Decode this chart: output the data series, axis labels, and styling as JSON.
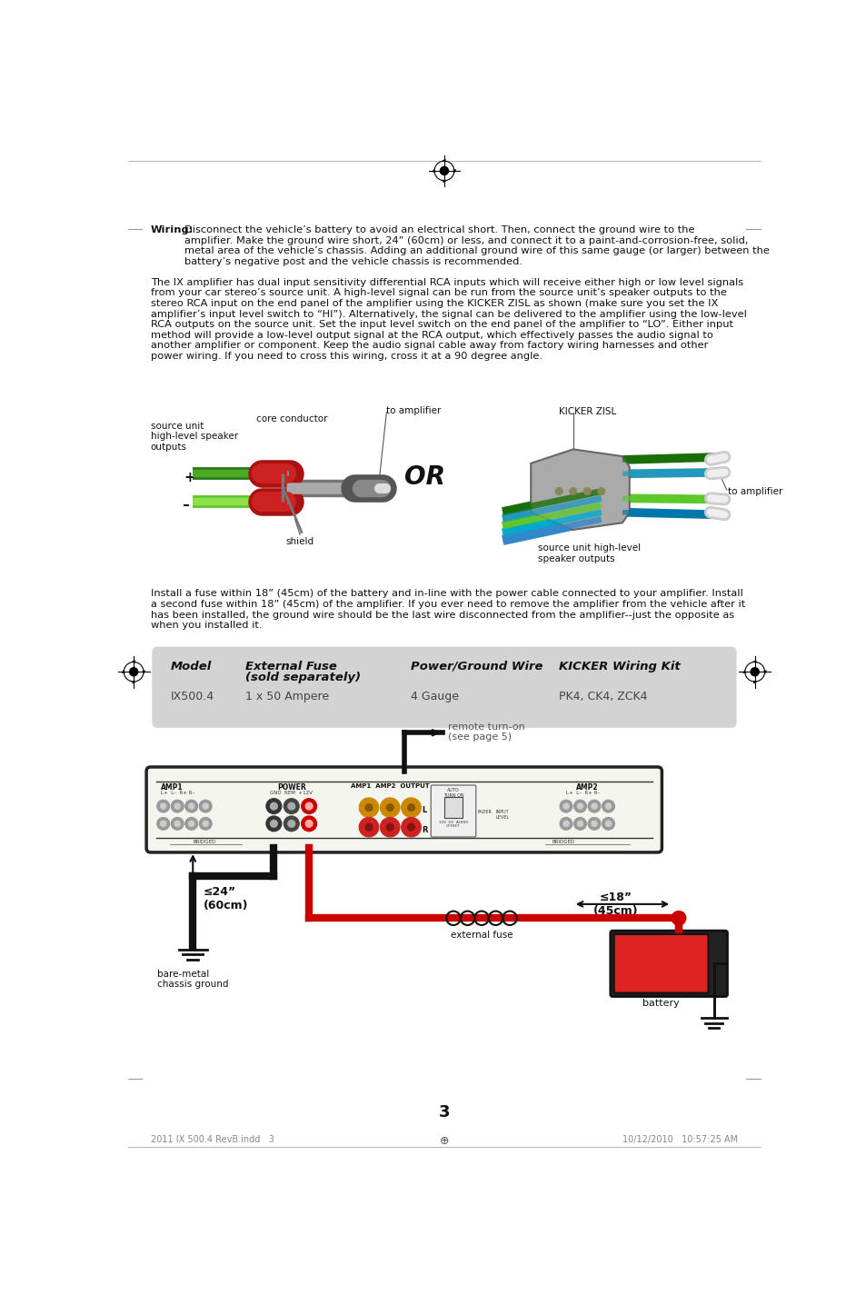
{
  "bg_color": "#ffffff",
  "page_width": 9.54,
  "page_height": 14.25,
  "wiring_bold": "Wiring:",
  "para1_rest": " Disconnect the vehicle’s battery to avoid an electrical short. Then, connect the ground wire to the amplifier. Make the ground wire short, 24” (60cm) or less, and connect it to a paint-and-corrosion-free, solid, metal area of the vehicle’s chassis. Adding an additional ground wire of this same gauge (or larger) between the battery’s negative post and the vehicle chassis is recommended.",
  "para2": "The IX amplifier has dual input sensitivity differential RCA inputs which will receive either high or low level signals from your car stereo’s source unit. A high-level signal can be run from the source unit’s speaker outputs to the stereo RCA input on the end panel of the amplifier using the KICKER ZISL as shown (make sure you set the IX amplifier’s input level switch to “HI”). Alternatively, the signal can be delivered to the amplifier using the low-level RCA outputs on the source unit. Set the input level switch on the end panel of the amplifier to “LO”. Either input method will provide a low-level output signal at the RCA output, which effectively passes the audio signal to another amplifier or component. Keep the audio signal cable away from factory wiring harnesses and other power wiring. If you need to cross this wiring, cross it at a 90 degree angle.",
  "para3": "Install a fuse within 18” (45cm) of the battery and in-line with the power cable connected to your amplifier. Install a second fuse within 18” (45cm) of the amplifier. If you ever need to remove the amplifier from the vehicle after it has been installed, the ground wire should be the last wire disconnected from the amplifier--just the opposite as when you installed it.",
  "table_bg": "#d3d3d3",
  "table_headers": [
    "Model",
    "External Fuse\n(sold separately)",
    "Power/Ground Wire",
    "KICKER Wiring Kit"
  ],
  "table_row": [
    "IX500.4",
    "1 x 50 Ampere",
    "4 Gauge",
    "PK4, CK4, ZCK4"
  ],
  "footer_left": "2011 IX 500.4 RevB.indd   3",
  "footer_right": "10/12/2010   10:57:25 AM",
  "page_number": "3"
}
